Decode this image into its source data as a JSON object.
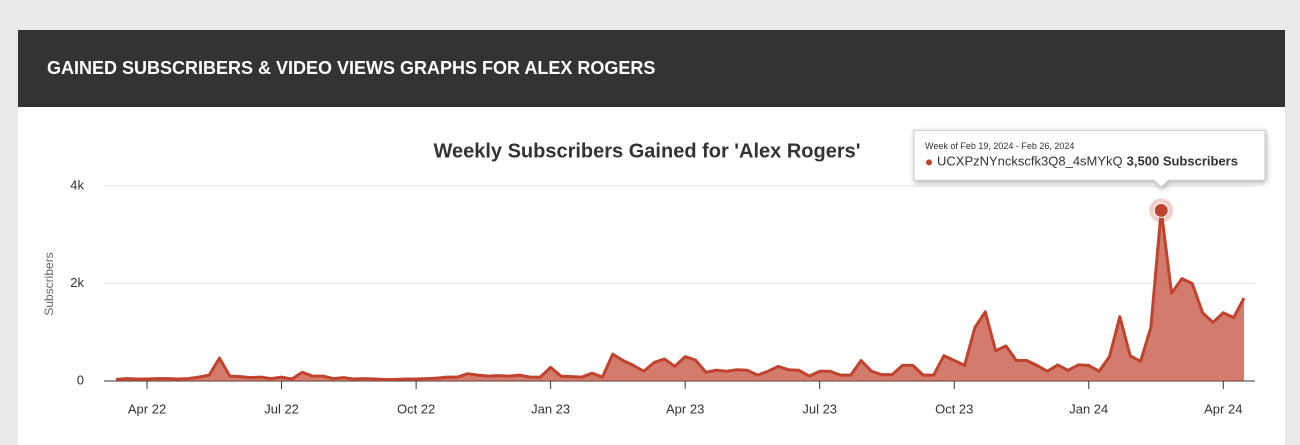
{
  "header": {
    "title": "GAINED SUBSCRIBERS & VIDEO VIEWS GRAPHS FOR ALEX ROGERS"
  },
  "chart_data": {
    "type": "area",
    "title": "Weekly Subscribers Gained for 'Alex Rogers'",
    "y_label": "Subscribers",
    "tooltip_title": "Week of Feb 19, 2024 - Feb 26, 2024",
    "categories": [
      null,
      null,
      null,
      "Apr 22",
      null,
      null,
      null,
      null,
      null,
      null,
      null,
      null,
      null,
      null,
      null,
      null,
      "Jul 22",
      null,
      null,
      null,
      null,
      null,
      null,
      null,
      null,
      null,
      null,
      null,
      null,
      "Oct 22",
      null,
      null,
      null,
      null,
      null,
      null,
      null,
      null,
      null,
      null,
      null,
      null,
      "Jan 23",
      null,
      null,
      null,
      null,
      null,
      null,
      null,
      null,
      null,
      null,
      null,
      null,
      "Apr 23",
      null,
      null,
      null,
      null,
      null,
      null,
      null,
      null,
      null,
      null,
      null,
      null,
      "Jul 23",
      null,
      null,
      null,
      null,
      null,
      null,
      null,
      null,
      null,
      null,
      null,
      null,
      "Oct 23",
      null,
      null,
      null,
      null,
      null,
      null,
      null,
      null,
      null,
      null,
      null,
      null,
      "Jan 24",
      null,
      null,
      null,
      null,
      null,
      null,
      null,
      null,
      null,
      null,
      null,
      null,
      "Apr 24",
      null,
      null
    ],
    "series": [
      {
        "name": "UCXPzNYnckscfk3Q8_4sMYkQ",
        "color": "#c0432e",
        "values": [
          30,
          50,
          40,
          40,
          50,
          50,
          40,
          50,
          80,
          120,
          470,
          100,
          90,
          70,
          80,
          50,
          80,
          40,
          180,
          100,
          100,
          50,
          70,
          40,
          50,
          40,
          30,
          30,
          40,
          40,
          50,
          60,
          80,
          80,
          150,
          120,
          100,
          110,
          100,
          120,
          80,
          80,
          280,
          100,
          90,
          80,
          160,
          80,
          550,
          420,
          320,
          200,
          380,
          450,
          300,
          500,
          430,
          180,
          220,
          200,
          230,
          220,
          120,
          200,
          300,
          230,
          220,
          100,
          200,
          200,
          120,
          120,
          420,
          200,
          130,
          130,
          320,
          320,
          120,
          120,
          520,
          420,
          320,
          1100,
          1420,
          620,
          720,
          420,
          420,
          320,
          200,
          330,
          220,
          330,
          320,
          200,
          500,
          1320,
          520,
          400,
          1100,
          3500,
          1800,
          2100,
          2000,
          1400,
          1200,
          1400,
          1300,
          1700
        ],
        "value_labels": [
          null,
          null,
          null,
          null,
          null,
          null,
          null,
          null,
          null,
          null,
          null,
          null,
          null,
          null,
          null,
          null,
          null,
          null,
          null,
          null,
          null,
          null,
          null,
          null,
          null,
          null,
          null,
          null,
          null,
          null,
          null,
          null,
          null,
          null,
          null,
          null,
          null,
          null,
          null,
          null,
          null,
          null,
          null,
          null,
          null,
          null,
          null,
          null,
          null,
          null,
          null,
          null,
          null,
          null,
          null,
          null,
          null,
          null,
          null,
          null,
          null,
          null,
          null,
          null,
          null,
          null,
          null,
          null,
          null,
          null,
          null,
          null,
          null,
          null,
          null,
          null,
          null,
          null,
          null,
          null,
          null,
          null,
          null,
          null,
          null,
          null,
          null,
          null,
          null,
          null,
          null,
          null,
          null,
          null,
          null,
          null,
          null,
          null,
          null,
          null,
          null,
          "3,500 Subscribers",
          null,
          null,
          null,
          null,
          null,
          null,
          null,
          null
        ]
      }
    ],
    "ylim": [
      0,
      4000
    ],
    "yticks": [
      0,
      {
        "value": 2000,
        "label": "2k"
      },
      {
        "value": 4000,
        "label": "4k"
      }
    ],
    "grid": true
  }
}
